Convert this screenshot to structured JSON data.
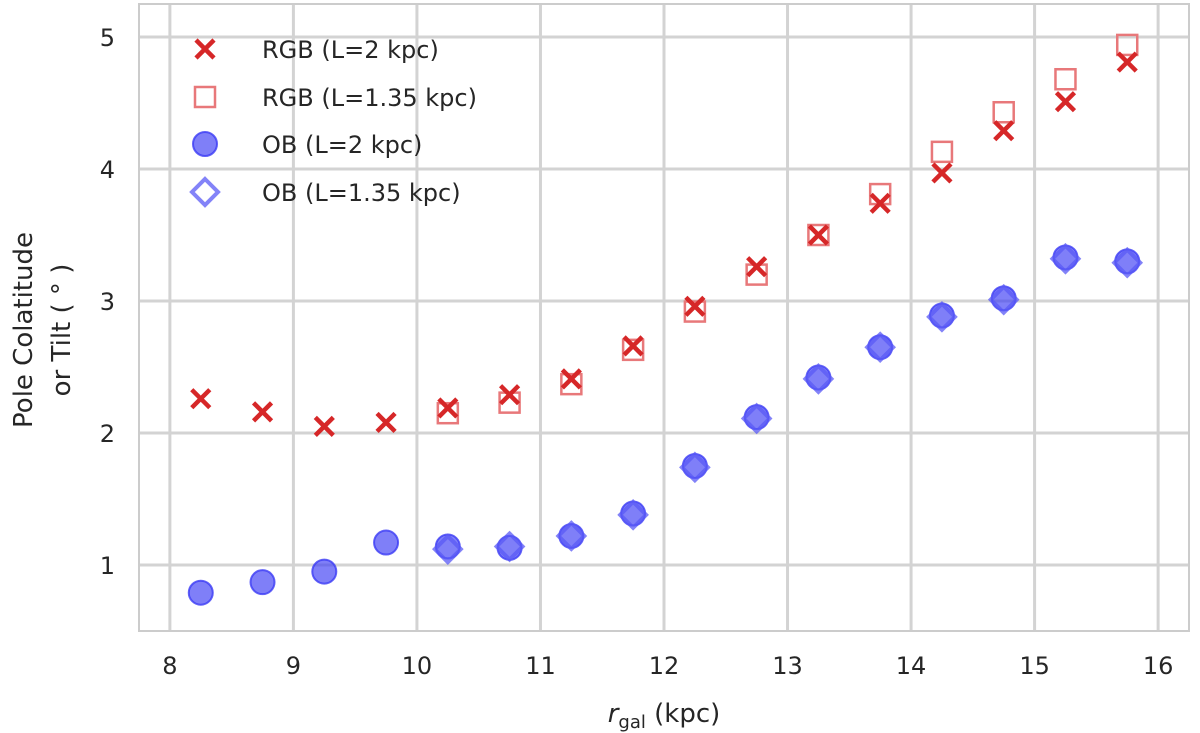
{
  "chart_data": {
    "type": "scatter",
    "title": "",
    "xlabel": {
      "symbol": "r",
      "subscript": "gal",
      "unit": " (kpc)"
    },
    "ylabel_lines": [
      "Pole Colatitude",
      "or Tilt ( ° )"
    ],
    "xlim": [
      7.75,
      16.25
    ],
    "ylim": [
      0.5,
      5.25
    ],
    "xticks": [
      8,
      9,
      10,
      11,
      12,
      13,
      14,
      15,
      16
    ],
    "yticks": [
      1,
      2,
      3,
      4,
      5
    ],
    "grid": true,
    "legend_position": "top-left",
    "series": [
      {
        "name": "RGB (L=2 kpc)",
        "marker": "x",
        "color": "#d62728",
        "x": [
          8.25,
          8.75,
          9.25,
          9.75,
          10.25,
          10.75,
          11.25,
          11.75,
          12.25,
          12.75,
          13.25,
          13.75,
          14.25,
          14.75,
          15.25,
          15.75
        ],
        "y": [
          2.26,
          2.16,
          2.05,
          2.08,
          2.19,
          2.29,
          2.41,
          2.66,
          2.96,
          3.26,
          3.5,
          3.74,
          3.97,
          4.29,
          4.51,
          4.81
        ]
      },
      {
        "name": "RGB (L=1.35 kpc)",
        "marker": "square-open",
        "color": "#e8787a",
        "x": [
          10.25,
          10.75,
          11.25,
          11.75,
          12.25,
          12.75,
          13.25,
          13.75,
          14.25,
          14.75,
          15.25,
          15.75
        ],
        "y": [
          2.15,
          2.23,
          2.37,
          2.63,
          2.92,
          3.2,
          3.5,
          3.81,
          4.13,
          4.43,
          4.68,
          4.94
        ]
      },
      {
        "name": "OB (L=2 kpc)",
        "marker": "circle",
        "color": "#3b3bf5",
        "x": [
          8.25,
          8.75,
          9.25,
          9.75,
          10.25,
          10.75,
          11.25,
          11.75,
          12.25,
          12.75,
          13.25,
          13.75,
          14.25,
          14.75,
          15.25,
          15.75
        ],
        "y": [
          0.79,
          0.87,
          0.95,
          1.17,
          1.14,
          1.13,
          1.22,
          1.39,
          1.75,
          2.12,
          2.42,
          2.65,
          2.89,
          3.02,
          3.33,
          3.3
        ]
      },
      {
        "name": "OB (L=1.35 kpc)",
        "marker": "diamond-open",
        "color": "#5a5af5",
        "x": [
          10.25,
          10.75,
          11.25,
          11.75,
          12.25,
          12.75,
          13.25,
          13.75,
          14.25,
          14.75,
          15.25,
          15.75
        ],
        "y": [
          1.12,
          1.14,
          1.22,
          1.38,
          1.74,
          2.11,
          2.41,
          2.65,
          2.88,
          3.01,
          3.32,
          3.29
        ]
      }
    ]
  }
}
